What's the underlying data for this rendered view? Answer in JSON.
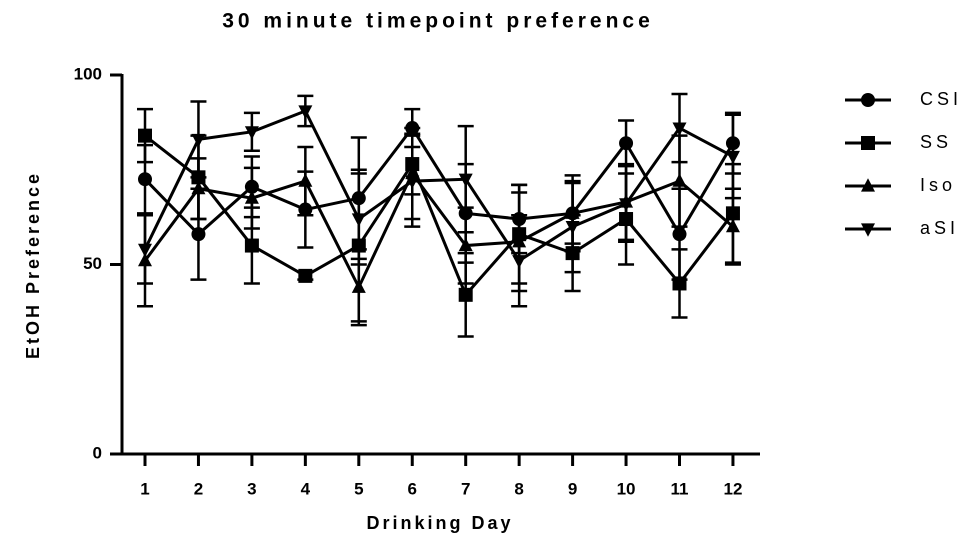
{
  "chart_data": {
    "type": "line",
    "title": "30 minute timepoint preference",
    "x_label": "Drinking Day",
    "y_label": "EtOH Preference",
    "categories": [
      "1",
      "2",
      "3",
      "4",
      "5",
      "6",
      "7",
      "8",
      "9",
      "10",
      "11",
      "12"
    ],
    "ylim": [
      0,
      100
    ],
    "yticks": [
      0,
      50,
      100
    ],
    "series": [
      {
        "name": "CSI",
        "marker": "circle",
        "color": "#000000",
        "values": [
          72.5,
          58,
          70.5,
          64.5,
          67.5,
          86,
          63.5,
          62,
          63.5,
          82,
          58,
          82
        ],
        "errors": [
          9,
          12,
          8,
          10,
          16,
          5,
          13,
          9,
          8,
          6,
          12,
          8
        ]
      },
      {
        "name": "SS",
        "marker": "square",
        "color": "#000000",
        "values": [
          84,
          73,
          55,
          47,
          55,
          76.5,
          42,
          58,
          53,
          62,
          45,
          63.5
        ],
        "errors": [
          7,
          11,
          10,
          1,
          20,
          8,
          11,
          13,
          10,
          12,
          9,
          13
        ]
      },
      {
        "name": "Iso",
        "marker": "triangle-up",
        "color": "#000000",
        "values": [
          51,
          70,
          67.5,
          72,
          44,
          74,
          55,
          56,
          63.5,
          66.5,
          72,
          60
        ],
        "errors": [
          12,
          8,
          8,
          9,
          10,
          12,
          10,
          13,
          10,
          10,
          12,
          10
        ]
      },
      {
        "name": "aSI",
        "marker": "triangle-down",
        "color": "#000000",
        "values": [
          54,
          83,
          85,
          90.5,
          62,
          72,
          72.5,
          51,
          60,
          66,
          86,
          78.5
        ],
        "errors": [
          9,
          10,
          5,
          4,
          12,
          12,
          14,
          12,
          12,
          10,
          9,
          11
        ]
      }
    ]
  }
}
